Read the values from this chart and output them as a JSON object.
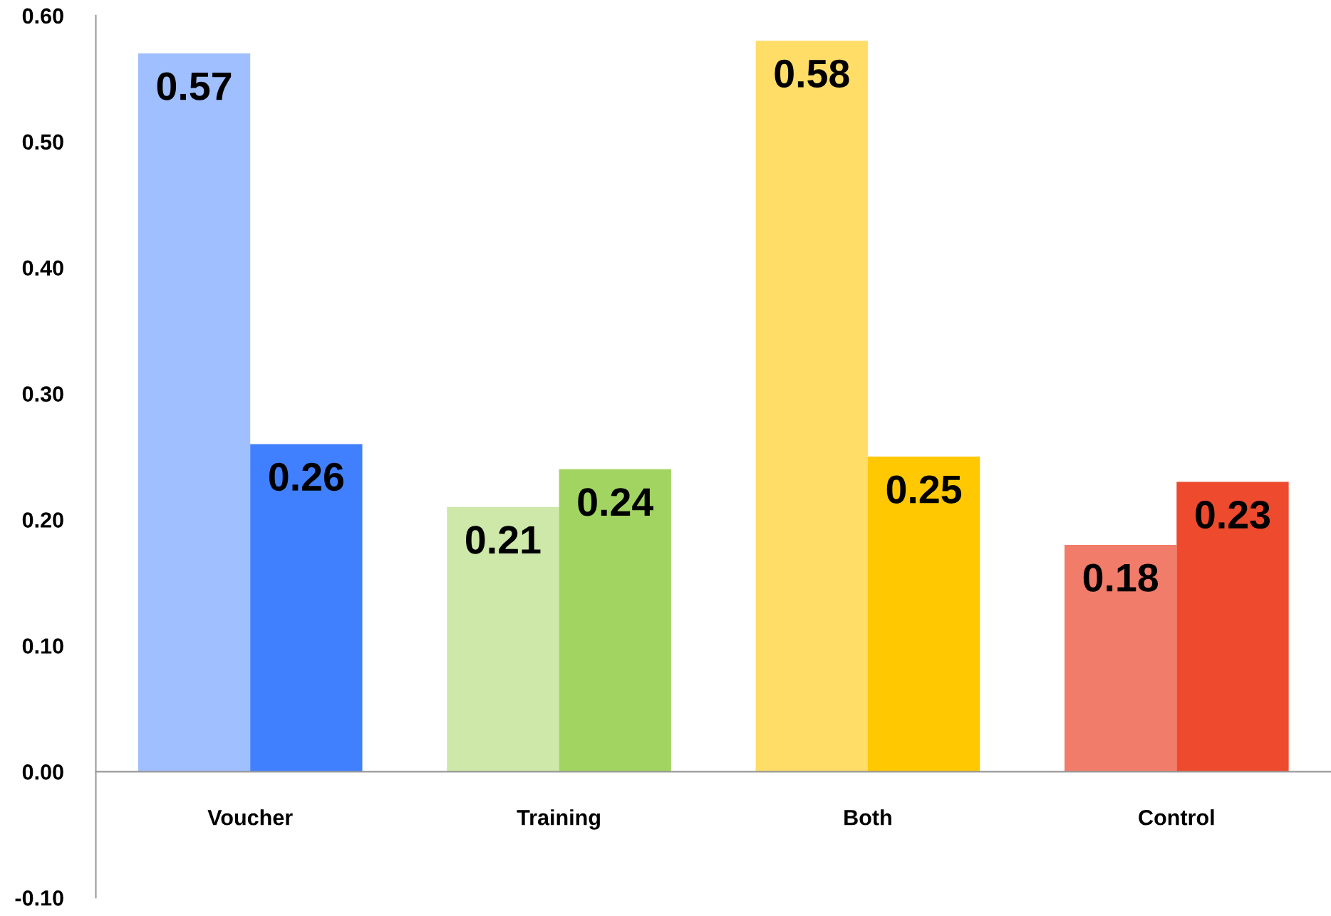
{
  "chart_data": {
    "type": "bar",
    "categories": [
      "Voucher",
      "Training",
      "Both",
      "Control"
    ],
    "series": [
      {
        "colors": [
          "#a0bfff",
          "#cde8a8",
          "#ffdd66",
          "#f27c6a"
        ],
        "values": [
          0.57,
          0.21,
          0.58,
          0.18
        ]
      },
      {
        "colors": [
          "#4080ff",
          "#a2d462",
          "#ffc800",
          "#ee4a2e"
        ],
        "values": [
          0.26,
          0.24,
          0.25,
          0.23
        ]
      }
    ],
    "ylim": [
      -0.1,
      0.6
    ],
    "yticks": [
      {
        "value": -0.1,
        "label": "-0.10"
      },
      {
        "value": 0,
        "label": "0.00"
      },
      {
        "value": 0.1,
        "label": "0.10"
      },
      {
        "value": 0.2,
        "label": "0.20"
      },
      {
        "value": 0.3,
        "label": "0.30"
      },
      {
        "value": 0.4,
        "label": "0.40"
      },
      {
        "value": 0.5,
        "label": "0.50"
      },
      {
        "value": 0.6,
        "label": "0.60"
      }
    ],
    "data_labels": true,
    "grid": false,
    "legend": false
  }
}
